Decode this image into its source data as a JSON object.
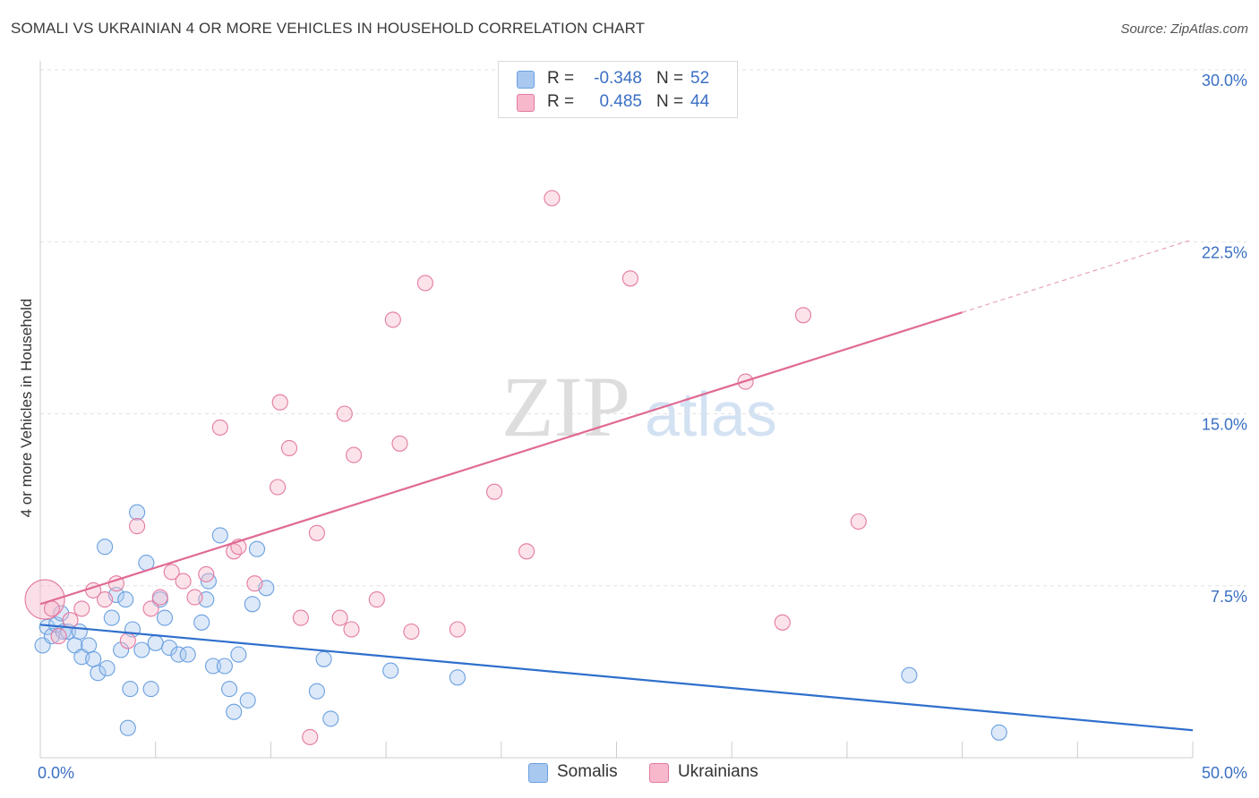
{
  "header": {
    "title": "SOMALI VS UKRAINIAN 4 OR MORE VEHICLES IN HOUSEHOLD CORRELATION CHART",
    "source": "Source: ZipAtlas.com"
  },
  "watermark": {
    "zip": "ZIP",
    "atlas": "atlas"
  },
  "legend": {
    "rows": [
      {
        "r_label": "R =",
        "r_value": "-0.348",
        "n_label": "N =",
        "n_value": "52",
        "color": "#a9c8f0"
      },
      {
        "r_label": "R =",
        "r_value": "0.485",
        "n_label": "N =",
        "n_value": "44",
        "color": "#f7b8cb"
      }
    ]
  },
  "bottom_legend": [
    {
      "label": "Somalis",
      "color": "#a9c8f0"
    },
    {
      "label": "Ukrainians",
      "color": "#f7b8cb"
    }
  ],
  "chart_data": {
    "type": "scatter",
    "title": "SOMALI VS UKRAINIAN 4 OR MORE VEHICLES IN HOUSEHOLD CORRELATION CHART",
    "xlabel": "",
    "ylabel": "4 or more Vehicles in Household",
    "xlim": [
      0,
      50
    ],
    "ylim": [
      0,
      30
    ],
    "x_tick_labels": [
      "0.0%",
      "50.0%"
    ],
    "y_ticks": [
      7.5,
      15.0,
      22.5,
      30.0
    ],
    "y_tick_labels": [
      "7.5%",
      "15.0%",
      "22.5%",
      "30.0%"
    ],
    "grid": true,
    "legend_placement": "top-center",
    "series": [
      {
        "name": "Somalis",
        "color": "#6aa0e0",
        "fill": "#a9c8f0",
        "trend": {
          "x0": 0,
          "y0": 5.8,
          "x1": 50,
          "y1": 1.2,
          "dash_from": 50
        },
        "points": [
          [
            0.1,
            4.9
          ],
          [
            0.3,
            5.7
          ],
          [
            0.5,
            5.3
          ],
          [
            0.7,
            5.8
          ],
          [
            0.9,
            6.3
          ],
          [
            1.0,
            5.5
          ],
          [
            1.2,
            5.5
          ],
          [
            1.5,
            4.9
          ],
          [
            1.7,
            5.5
          ],
          [
            1.8,
            4.4
          ],
          [
            2.1,
            4.9
          ],
          [
            2.3,
            4.3
          ],
          [
            2.5,
            3.7
          ],
          [
            2.8,
            9.2
          ],
          [
            2.9,
            3.9
          ],
          [
            3.1,
            6.1
          ],
          [
            3.3,
            7.1
          ],
          [
            3.5,
            4.7
          ],
          [
            3.7,
            6.9
          ],
          [
            3.8,
            1.3
          ],
          [
            3.9,
            3.0
          ],
          [
            4.0,
            5.6
          ],
          [
            4.2,
            10.7
          ],
          [
            4.4,
            4.7
          ],
          [
            4.6,
            8.5
          ],
          [
            4.8,
            3.0
          ],
          [
            5.0,
            5.0
          ],
          [
            5.2,
            6.9
          ],
          [
            5.4,
            6.1
          ],
          [
            5.6,
            4.8
          ],
          [
            6.0,
            4.5
          ],
          [
            6.4,
            4.5
          ],
          [
            7.0,
            5.9
          ],
          [
            7.2,
            6.9
          ],
          [
            7.3,
            7.7
          ],
          [
            7.5,
            4.0
          ],
          [
            7.8,
            9.7
          ],
          [
            8.0,
            4.0
          ],
          [
            8.2,
            3.0
          ],
          [
            8.4,
            2.0
          ],
          [
            8.6,
            4.5
          ],
          [
            9.0,
            2.5
          ],
          [
            9.2,
            6.7
          ],
          [
            9.4,
            9.1
          ],
          [
            9.8,
            7.4
          ],
          [
            12.0,
            2.9
          ],
          [
            12.3,
            4.3
          ],
          [
            12.6,
            1.7
          ],
          [
            15.2,
            3.8
          ],
          [
            18.1,
            3.5
          ],
          [
            37.7,
            3.6
          ],
          [
            41.6,
            1.1
          ]
        ]
      },
      {
        "name": "Ukrainians",
        "color": "#e37aa0",
        "fill": "#f7b8cb",
        "trend": {
          "x0": 0,
          "y0": 6.7,
          "x1": 50,
          "y1": 22.6,
          "dash_from": 40
        },
        "points": [
          [
            0.2,
            6.9
          ],
          [
            0.8,
            5.3
          ],
          [
            1.3,
            6.0
          ],
          [
            1.8,
            6.5
          ],
          [
            2.3,
            7.3
          ],
          [
            2.8,
            6.9
          ],
          [
            3.3,
            7.6
          ],
          [
            3.8,
            5.1
          ],
          [
            4.2,
            10.1
          ],
          [
            4.8,
            6.5
          ],
          [
            5.2,
            7.0
          ],
          [
            5.7,
            8.1
          ],
          [
            6.2,
            7.7
          ],
          [
            6.7,
            7.0
          ],
          [
            7.2,
            8.0
          ],
          [
            7.8,
            14.4
          ],
          [
            8.4,
            9.0
          ],
          [
            8.6,
            9.2
          ],
          [
            9.3,
            7.6
          ],
          [
            10.3,
            11.8
          ],
          [
            10.4,
            15.5
          ],
          [
            10.8,
            13.5
          ],
          [
            11.3,
            6.1
          ],
          [
            11.7,
            0.9
          ],
          [
            12.0,
            9.8
          ],
          [
            13.0,
            6.1
          ],
          [
            13.2,
            15.0
          ],
          [
            13.5,
            5.6
          ],
          [
            13.6,
            13.2
          ],
          [
            14.6,
            6.9
          ],
          [
            15.3,
            19.1
          ],
          [
            15.6,
            13.7
          ],
          [
            16.1,
            5.5
          ],
          [
            16.7,
            20.7
          ],
          [
            18.1,
            5.6
          ],
          [
            19.7,
            11.6
          ],
          [
            21.1,
            9.0
          ],
          [
            22.2,
            24.4
          ],
          [
            25.6,
            20.9
          ],
          [
            30.6,
            16.4
          ],
          [
            32.2,
            5.9
          ],
          [
            33.1,
            19.3
          ],
          [
            35.5,
            10.3
          ],
          [
            0.5,
            6.5
          ]
        ]
      }
    ]
  }
}
